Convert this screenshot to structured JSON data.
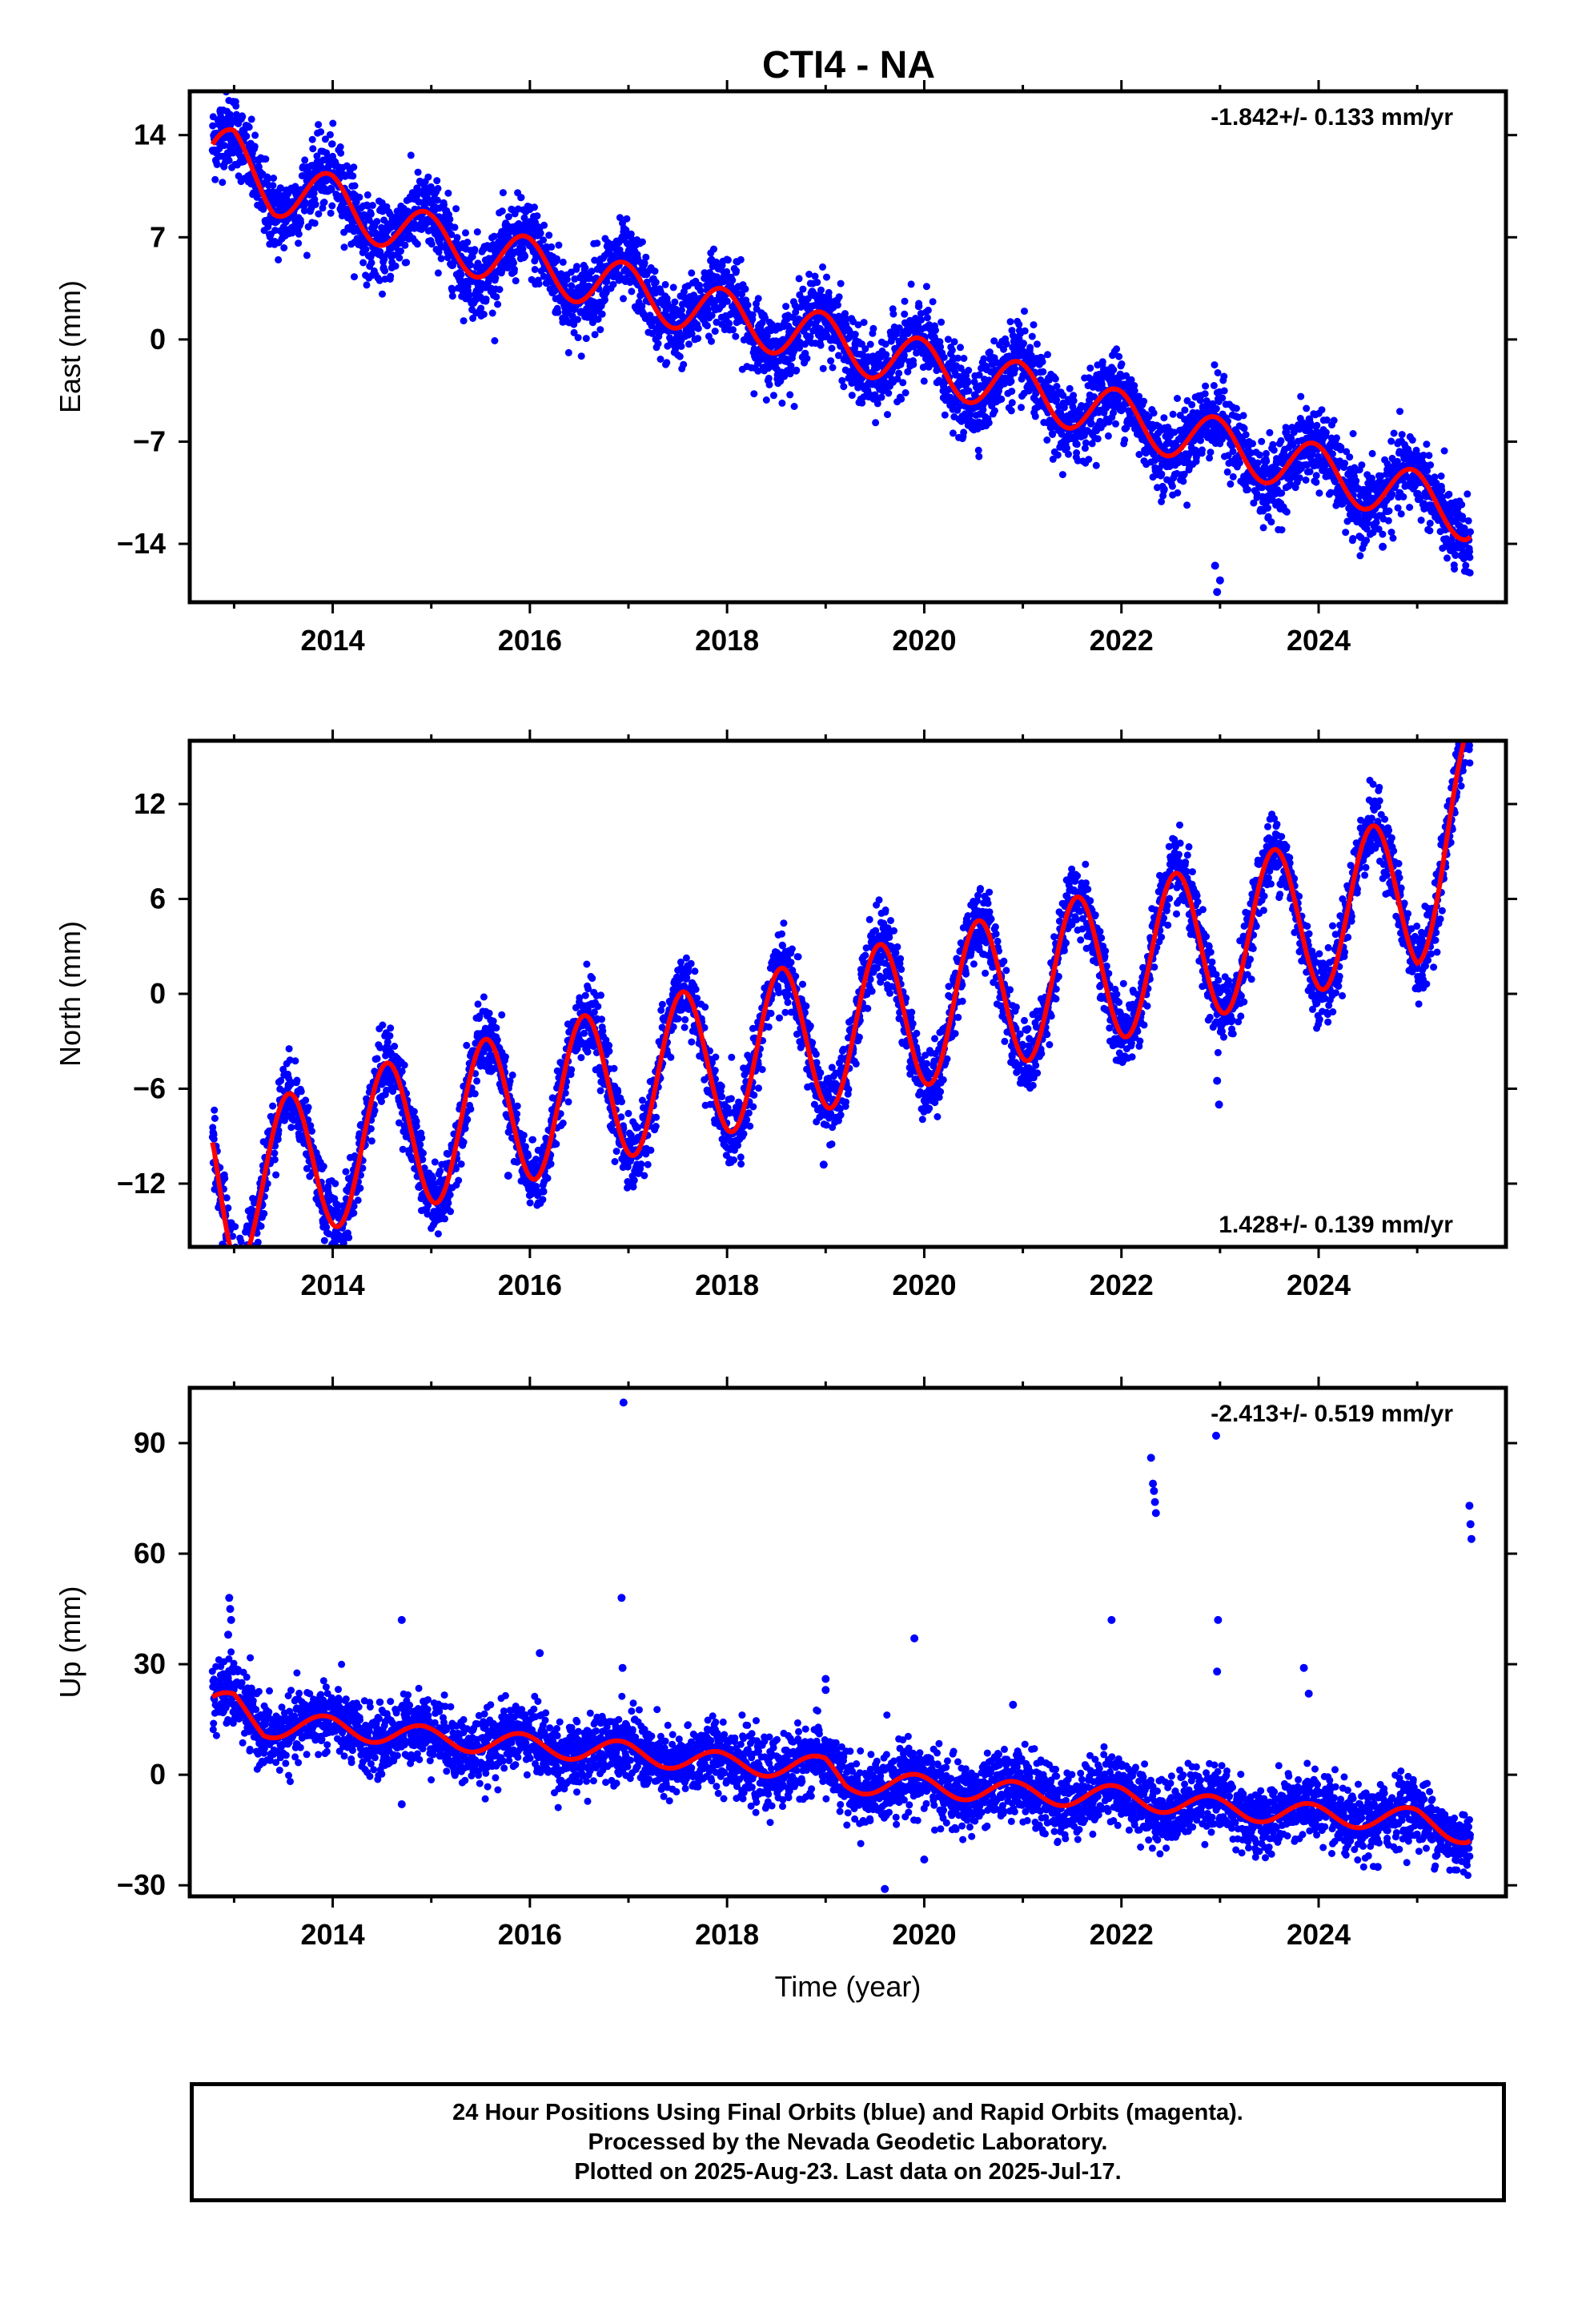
{
  "title": "CTI4 - NA",
  "colors": {
    "points": "#0000ff",
    "fit": "#ff0000",
    "frame": "#000000"
  },
  "chart_data": [
    {
      "type": "scatter",
      "panel": "east",
      "ylabel": "East (mm)",
      "xlabel": "",
      "rate_label": "-1.842+/- 0.133 mm/yr",
      "rate_label_position": "top-right",
      "xlim": [
        2012.55,
        2025.9
      ],
      "ylim": [
        -18,
        17
      ],
      "xticks": [
        "2014",
        "2016",
        "2018",
        "2020",
        "2022",
        "2024"
      ],
      "yticks": [
        "14",
        "7",
        "0",
        "−7",
        "−14"
      ],
      "ytick_values": [
        14,
        7,
        0,
        -7,
        -14
      ],
      "data_span": [
        2012.78,
        2025.54
      ],
      "series": [
        {
          "kind": "points",
          "trend": [
            [
              2012.8,
              12.5
            ],
            [
              2013.0,
              12.6
            ],
            [
              2013.4,
              10.3
            ],
            [
              2014.0,
              9.5
            ],
            [
              2015.0,
              6.8
            ],
            [
              2016.0,
              5.2
            ],
            [
              2017.0,
              3.4
            ],
            [
              2018.0,
              1.6
            ],
            [
              2019.0,
              0.0
            ],
            [
              2020.0,
              -1.8
            ],
            [
              2021.0,
              -3.4
            ],
            [
              2022.0,
              -5.3
            ],
            [
              2023.0,
              -7.2
            ],
            [
              2024.0,
              -9.0
            ],
            [
              2025.0,
              -10.8
            ],
            [
              2025.5,
              -12.0
            ]
          ],
          "annual_amp": 1.8,
          "scatter": 1.3
        },
        {
          "kind": "fit"
        }
      ],
      "outliers": [
        [
          2022.95,
          -15.5
        ],
        [
          2022.97,
          -17.3
        ],
        [
          2023.0,
          -16.5
        ],
        [
          2024.65,
          -14.2
        ],
        [
          2025.45,
          -14.8
        ]
      ]
    },
    {
      "type": "scatter",
      "panel": "north",
      "ylabel": "North (mm)",
      "xlabel": "",
      "rate_label": "1.428+/- 0.139 mm/yr",
      "rate_label_position": "bottom-right",
      "xlim": [
        2012.55,
        2025.9
      ],
      "ylim": [
        -16,
        16
      ],
      "xticks": [
        "2014",
        "2016",
        "2018",
        "2020",
        "2022",
        "2024"
      ],
      "yticks": [
        "12",
        "6",
        "0",
        "−6",
        "−12"
      ],
      "ytick_values": [
        12,
        6,
        0,
        -6,
        -12
      ],
      "data_span": [
        2012.78,
        2025.54
      ],
      "series": [
        {
          "kind": "points",
          "trend": [
            [
              2012.8,
              -10.0
            ],
            [
              2013.0,
              -12.5
            ],
            [
              2014.0,
              -10.0
            ],
            [
              2015.0,
              -8.5
            ],
            [
              2016.0,
              -7.0
            ],
            [
              2017.0,
              -5.5
            ],
            [
              2018.0,
              -4.0
            ],
            [
              2019.0,
              -2.5
            ],
            [
              2020.0,
              -1.0
            ],
            [
              2021.0,
              0.5
            ],
            [
              2022.0,
              2.0
            ],
            [
              2023.0,
              3.5
            ],
            [
              2024.0,
              5.0
            ],
            [
              2025.0,
              6.5
            ],
            [
              2025.5,
              12.0
            ]
          ],
          "annual_amp": 4.8,
          "scatter": 1.1
        },
        {
          "kind": "fit"
        }
      ],
      "outliers": [
        [
          2012.97,
          -14.5
        ],
        [
          2015.78,
          -11.5
        ],
        [
          2018.98,
          -10.8
        ],
        [
          2021.97,
          -4.2
        ],
        [
          2022.97,
          -5.5
        ],
        [
          2022.99,
          -7.0
        ],
        [
          2015.0,
          -12.0
        ]
      ]
    },
    {
      "type": "scatter",
      "panel": "up",
      "ylabel": "Up (mm)",
      "xlabel": "Time (year)",
      "rate_label": "-2.413+/- 0.519 mm/yr",
      "rate_label_position": "top-right",
      "xlim": [
        2012.55,
        2025.9
      ],
      "ylim": [
        -33,
        105
      ],
      "xticks": [
        "2014",
        "2016",
        "2018",
        "2020",
        "2022",
        "2024"
      ],
      "yticks": [
        "90",
        "60",
        "30",
        "0",
        "−30"
      ],
      "ytick_values": [
        90,
        60,
        30,
        0,
        -30
      ],
      "data_span": [
        2012.78,
        2025.54
      ],
      "series": [
        {
          "kind": "points",
          "trend": [
            [
              2012.8,
              19.0
            ],
            [
              2013.0,
              19.5
            ],
            [
              2013.3,
              13.0
            ],
            [
              2014.0,
              13.0
            ],
            [
              2015.0,
              10.0
            ],
            [
              2016.0,
              8.0
            ],
            [
              2017.0,
              6.0
            ],
            [
              2018.0,
              3.0
            ],
            [
              2019.0,
              2.0
            ],
            [
              2019.2,
              -2.0
            ],
            [
              2020.0,
              -3.0
            ],
            [
              2021.0,
              -5.0
            ],
            [
              2022.0,
              -6.0
            ],
            [
              2023.0,
              -9.0
            ],
            [
              2024.0,
              -11.0
            ],
            [
              2025.0,
              -12.0
            ],
            [
              2025.5,
              -16.0
            ]
          ],
          "annual_amp": 3.0,
          "scatter": 4.5
        },
        {
          "kind": "fit"
        }
      ],
      "outliers": [
        [
          2012.95,
          48
        ],
        [
          2012.96,
          45
        ],
        [
          2012.97,
          42
        ],
        [
          2012.94,
          38
        ],
        [
          2014.7,
          42
        ],
        [
          2014.7,
          -8
        ],
        [
          2016.1,
          33
        ],
        [
          2016.95,
          101
        ],
        [
          2016.93,
          48
        ],
        [
          2016.94,
          29
        ],
        [
          2019.0,
          26
        ],
        [
          2019.0,
          23
        ],
        [
          2019.9,
          37
        ],
        [
          2019.6,
          -31
        ],
        [
          2020.0,
          -23
        ],
        [
          2020.9,
          19
        ],
        [
          2021.9,
          42
        ],
        [
          2022.3,
          86
        ],
        [
          2022.32,
          79
        ],
        [
          2022.33,
          77
        ],
        [
          2022.34,
          74
        ],
        [
          2022.35,
          71
        ],
        [
          2022.96,
          92
        ],
        [
          2022.98,
          42
        ],
        [
          2022.97,
          28
        ],
        [
          2023.85,
          29
        ],
        [
          2023.9,
          22
        ],
        [
          2025.53,
          73
        ],
        [
          2025.54,
          68
        ],
        [
          2025.55,
          64
        ],
        [
          2024.6,
          -25
        ]
      ]
    }
  ],
  "footer": {
    "line1": "24 Hour Positions Using Final Orbits (blue) and Rapid Orbits (magenta).",
    "line2": "Processed by the Nevada Geodetic Laboratory.",
    "line3": "Plotted on 2025-Aug-23. Last data on 2025-Jul-17."
  }
}
